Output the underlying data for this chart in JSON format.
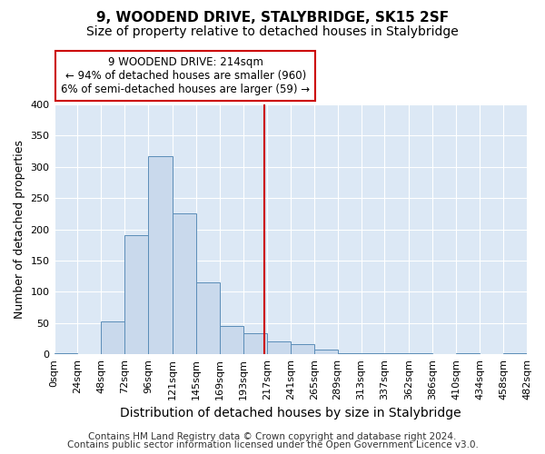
{
  "title": "9, WOODEND DRIVE, STALYBRIDGE, SK15 2SF",
  "subtitle": "Size of property relative to detached houses in Stalybridge",
  "bar_edges": [
    0,
    24,
    48,
    72,
    96,
    121,
    145,
    169,
    193,
    217,
    241,
    265,
    289,
    313,
    337,
    362,
    386,
    410,
    434,
    458,
    482
  ],
  "bar_heights": [
    1,
    0,
    53,
    190,
    317,
    226,
    115,
    46,
    34,
    21,
    16,
    7,
    1,
    1,
    1,
    1,
    0,
    1,
    0,
    1
  ],
  "bar_color": "#c9d9ec",
  "bar_edge_color": "#5b8db8",
  "property_value": 214,
  "vline_color": "#cc0000",
  "xlabel": "Distribution of detached houses by size in Stalybridge",
  "ylabel": "Number of detached properties",
  "ylim": [
    0,
    400
  ],
  "yticks": [
    0,
    50,
    100,
    150,
    200,
    250,
    300,
    350,
    400
  ],
  "xtick_labels": [
    "0sqm",
    "24sqm",
    "48sqm",
    "72sqm",
    "96sqm",
    "121sqm",
    "145sqm",
    "169sqm",
    "193sqm",
    "217sqm",
    "241sqm",
    "265sqm",
    "289sqm",
    "313sqm",
    "337sqm",
    "362sqm",
    "386sqm",
    "410sqm",
    "434sqm",
    "458sqm",
    "482sqm"
  ],
  "annotation_title": "9 WOODEND DRIVE: 214sqm",
  "annotation_line1": "← 94% of detached houses are smaller (960)",
  "annotation_line2": "6% of semi-detached houses are larger (59) →",
  "annotation_box_color": "#ffffff",
  "annotation_box_edge": "#cc0000",
  "footer1": "Contains HM Land Registry data © Crown copyright and database right 2024.",
  "footer2": "Contains public sector information licensed under the Open Government Licence v3.0.",
  "fig_background_color": "#ffffff",
  "plot_background": "#dce8f5",
  "grid_color": "#ffffff",
  "title_fontsize": 11,
  "subtitle_fontsize": 10,
  "xlabel_fontsize": 10,
  "ylabel_fontsize": 9,
  "tick_fontsize": 8,
  "footer_fontsize": 7.5
}
